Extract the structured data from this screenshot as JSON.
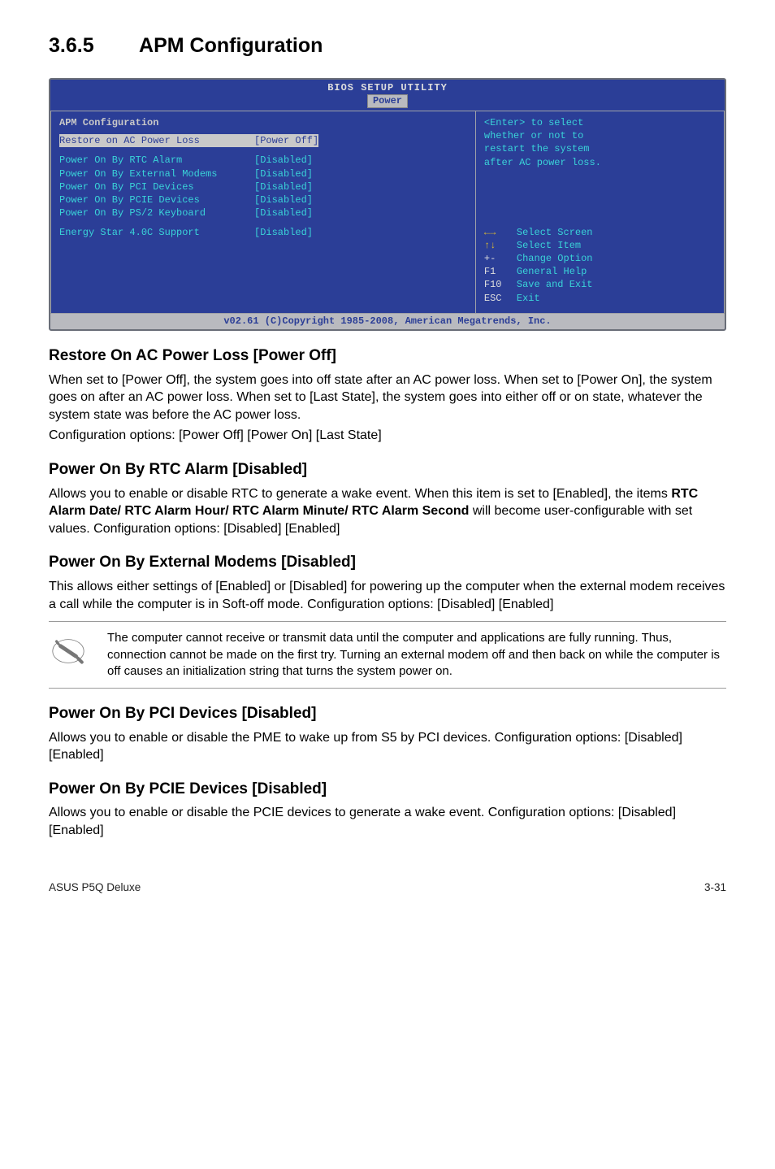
{
  "heading": {
    "number": "3.6.5",
    "title": "APM Configuration"
  },
  "bios": {
    "title_line1": "BIOS SETUP UTILITY",
    "tab": "Power",
    "section_header": "APM Configuration",
    "rows": [
      {
        "label": "Restore on AC Power Loss",
        "value": "[Power Off]",
        "highlight": true
      },
      {
        "label": "Power On By RTC Alarm",
        "value": "[Disabled]"
      },
      {
        "label": "Power On By External Modems",
        "value": "[Disabled]"
      },
      {
        "label": "Power On By PCI Devices",
        "value": "[Disabled]"
      },
      {
        "label": "Power On By PCIE Devices",
        "value": "[Disabled]"
      },
      {
        "label": "Power On By PS/2 Keyboard",
        "value": "[Disabled]"
      },
      {
        "label": "Energy Star 4.0C Support",
        "value": "[Disabled]"
      }
    ],
    "help_text_lines": [
      "<Enter> to select",
      "whether or not to",
      "restart the system",
      "after AC power loss."
    ],
    "nav": [
      {
        "key": "←→",
        "text": "Select Screen",
        "arrow": true
      },
      {
        "key": "↑↓",
        "text": "Select Item",
        "arrow": true
      },
      {
        "key": "+-",
        "text": "Change Option"
      },
      {
        "key": "F1",
        "text": "General Help"
      },
      {
        "key": "F10",
        "text": "Save and Exit"
      },
      {
        "key": "ESC",
        "text": "Exit"
      }
    ],
    "footer": "v02.61 (C)Copyright 1985-2008, American Megatrends, Inc."
  },
  "sections": {
    "restore": {
      "title": "Restore On AC Power Loss [Power Off]",
      "p1": "When set to [Power Off], the system goes into off state after an AC power loss. When set to [Power On], the system goes on after an AC power loss. When set to [Last State], the system goes into either off or on state, whatever the system state was before the AC power loss.",
      "p2": "Configuration options: [Power Off] [Power On] [Last State]"
    },
    "rtc": {
      "title": "Power On By RTC Alarm [Disabled]",
      "p1a": "Allows you to enable or disable RTC to generate a wake event. When this item is set to [Enabled], the items ",
      "p1b": "RTC Alarm Date/ RTC Alarm Hour/ RTC Alarm Minute/ RTC Alarm Second",
      "p1c": " will become user-configurable with set values. Configuration options: [Disabled] [Enabled]"
    },
    "extmodem": {
      "title": "Power On By External Modems [Disabled]",
      "p1": "This allows either settings of [Enabled] or [Disabled] for powering up the computer when the external modem receives a call while the computer is in Soft-off mode. Configuration options: [Disabled] [Enabled]"
    },
    "note_text": "The computer cannot receive or transmit data until the computer and applications are fully running. Thus, connection cannot be made on the first try. Turning an external modem off and then back on while the computer is off causes an initialization string that turns the system power on.",
    "pci": {
      "title": "Power On By PCI Devices [Disabled]",
      "p1": "Allows you to enable or disable the PME to wake up from S5 by PCI devices. Configuration options: [Disabled] [Enabled]"
    },
    "pcie": {
      "title": "Power On By PCIE Devices [Disabled]",
      "p1": "Allows you to enable or disable the PCIE devices to generate a wake event. Configuration options: [Disabled] [Enabled]"
    }
  },
  "footer": {
    "left": "ASUS P5Q Deluxe",
    "right": "3-31"
  }
}
